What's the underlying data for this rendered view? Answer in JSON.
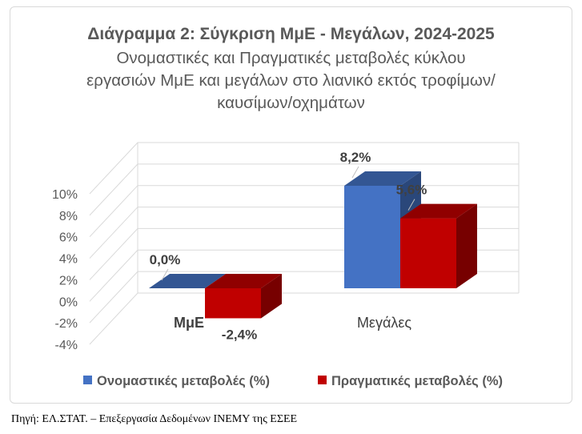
{
  "chart_data": {
    "type": "bar",
    "title": "Διάγραμμα 2: Σύγκριση ΜμΕ - Μεγάλων, 2024-2025",
    "subtitle": "Ονομαστικές και Πραγματικές μεταβολές κύκλου εργασιών ΜμΕ και μεγάλων στο λιανικό εκτός τροφίμων/καυσίμων/οχημάτων",
    "categories": [
      "ΜμΕ",
      "Μεγάλες"
    ],
    "series": [
      {
        "name": "Ονομαστικές μεταβολές (%)",
        "values": [
          0.0,
          8.2
        ],
        "labels": [
          "0,0%",
          "8,2%"
        ],
        "color": "#4472c4"
      },
      {
        "name": "Πραγματικές μεταβολές (%)",
        "values": [
          -2.4,
          5.6
        ],
        "labels": [
          "-2,4%",
          "5,6%"
        ],
        "color": "#c00000"
      }
    ],
    "yticks": [
      10,
      8,
      6,
      4,
      2,
      0,
      -2,
      -4
    ],
    "ytick_labels": [
      "10%",
      "8%",
      "6%",
      "4%",
      "2%",
      "0%",
      "-2%",
      "-4%"
    ],
    "ylim": [
      -4,
      10
    ],
    "grid": true,
    "legend_position": "bottom",
    "style": "3d-clustered-column"
  },
  "source": "Πηγή: ΕΛ.ΣΤΑΤ. – Επεξεργασία Δεδομένων ΙΝΕΜΥ της ΕΣΕΕ"
}
